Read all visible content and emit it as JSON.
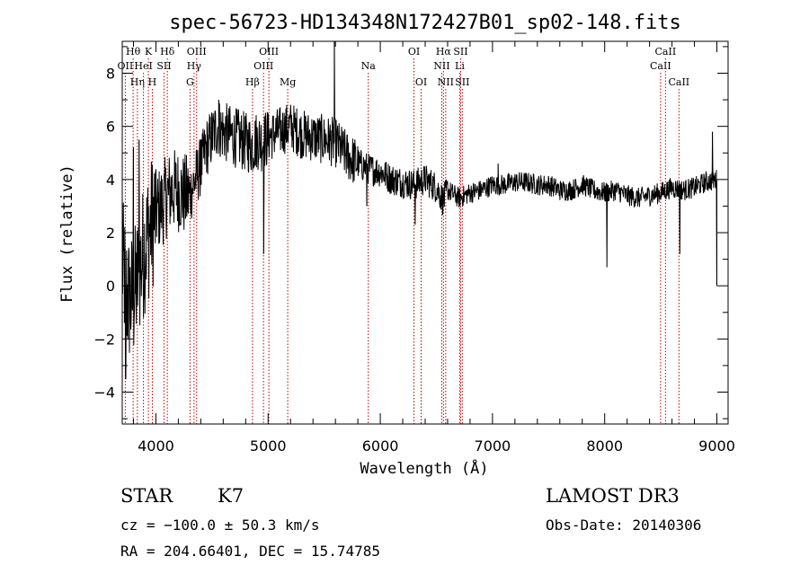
{
  "chart_data": {
    "type": "line",
    "title": "spec-56723-HD134348N172427B01_sp02-148.fits",
    "xlabel": "Wavelength (Å)",
    "ylabel": "Flux (relative)",
    "xlim": [
      3700,
      9100
    ],
    "ylim": [
      -5.2,
      9.2
    ],
    "xticks": [
      4000,
      5000,
      6000,
      7000,
      8000,
      9000
    ],
    "xtick_labels": [
      "4000",
      "5000",
      "6000",
      "7000",
      "8000",
      "9000"
    ],
    "yticks": [
      -4,
      -2,
      0,
      2,
      4,
      6,
      8
    ],
    "ytick_labels": [
      "−4",
      "−2",
      "0",
      "2",
      "4",
      "6",
      "8"
    ],
    "spectrum_anchors": {
      "x": [
        3700,
        3750,
        3800,
        3850,
        3900,
        3950,
        4000,
        4050,
        4100,
        4150,
        4200,
        4250,
        4300,
        4350,
        4400,
        4450,
        4500,
        4550,
        4600,
        4700,
        4800,
        4860,
        4900,
        4950,
        5000,
        5100,
        5200,
        5300,
        5400,
        5500,
        5600,
        5700,
        5800,
        5900,
        6000,
        6100,
        6200,
        6300,
        6400,
        6500,
        6563,
        6600,
        6700,
        6800,
        6900,
        7000,
        7100,
        7200,
        7300,
        7400,
        7500,
        7600,
        7700,
        7800,
        7900,
        8000,
        8100,
        8200,
        8300,
        8400,
        8500,
        8600,
        8700,
        8800,
        8900,
        9000
      ],
      "y": [
        0.8,
        -0.5,
        -0.5,
        0.5,
        1.5,
        2.2,
        2.8,
        3.0,
        3.4,
        3.6,
        3.6,
        3.4,
        3.4,
        4.0,
        4.5,
        5.2,
        5.6,
        6.0,
        5.8,
        5.6,
        5.4,
        5.3,
        5.5,
        5.4,
        5.6,
        5.8,
        6.0,
        5.7,
        5.6,
        5.5,
        5.4,
        4.9,
        4.6,
        4.4,
        4.3,
        4.0,
        3.9,
        3.8,
        4.0,
        3.7,
        3.2,
        3.6,
        3.3,
        3.5,
        3.6,
        3.8,
        3.8,
        3.9,
        3.9,
        3.8,
        3.8,
        3.6,
        3.6,
        3.8,
        3.6,
        3.5,
        3.6,
        3.4,
        3.3,
        3.4,
        3.5,
        3.7,
        3.6,
        3.7,
        3.9,
        4.0
      ],
      "noise_note": "dense noisy curve, amplitude decreasing with wavelength"
    },
    "spikes": [
      {
        "x": 3730,
        "y": -3.5
      },
      {
        "x": 3800,
        "y": 5.2
      },
      {
        "x": 3850,
        "y": 5.5
      },
      {
        "x": 4400,
        "y": 5.5
      },
      {
        "x": 4560,
        "y": 7.0
      },
      {
        "x": 4960,
        "y": 1.2
      },
      {
        "x": 5590,
        "y": 9.2
      },
      {
        "x": 5880,
        "y": 3.0
      },
      {
        "x": 6310,
        "y": 2.3
      },
      {
        "x": 7050,
        "y": 4.6
      },
      {
        "x": 8020,
        "y": 0.7
      },
      {
        "x": 8670,
        "y": 1.2
      },
      {
        "x": 8960,
        "y": 5.8
      },
      {
        "x": 9000,
        "y": 0.0
      }
    ],
    "line_markers": [
      {
        "x": 3797,
        "label": "Hθ",
        "row": 1
      },
      {
        "x": 3727,
        "label": "OII",
        "row": 2
      },
      {
        "x": 3835,
        "label": "Hη",
        "row": 3
      },
      {
        "x": 3889,
        "label": "HeI",
        "row": 2
      },
      {
        "x": 3933,
        "label": "K",
        "row": 1
      },
      {
        "x": 3968,
        "label": "H",
        "row": 3
      },
      {
        "x": 4072,
        "label": "SII",
        "row": 2
      },
      {
        "x": 4102,
        "label": "Hδ",
        "row": 1
      },
      {
        "x": 4304,
        "label": "G",
        "row": 3
      },
      {
        "x": 4340,
        "label": "Hγ",
        "row": 2
      },
      {
        "x": 4363,
        "label": "OIII",
        "row": 1
      },
      {
        "x": 4861,
        "label": "Hβ",
        "row": 3
      },
      {
        "x": 4959,
        "label": "OIII",
        "row": 2
      },
      {
        "x": 5007,
        "label": "OIII",
        "row": 1
      },
      {
        "x": 5175,
        "label": "Mg",
        "row": 3
      },
      {
        "x": 5893,
        "label": "Na",
        "row": 2
      },
      {
        "x": 6300,
        "label": "OI",
        "row": 1
      },
      {
        "x": 6364,
        "label": "OI",
        "row": 3
      },
      {
        "x": 6548,
        "label": "NII",
        "row": 2
      },
      {
        "x": 6563,
        "label": "Hα",
        "row": 1
      },
      {
        "x": 6583,
        "label": "NII",
        "row": 3
      },
      {
        "x": 6708,
        "label": "Li",
        "row": 2
      },
      {
        "x": 6716,
        "label": "SII",
        "row": 1
      },
      {
        "x": 6731,
        "label": "SII",
        "row": 3
      },
      {
        "x": 8498,
        "label": "CaII",
        "row": 2
      },
      {
        "x": 8542,
        "label": "CaII",
        "row": 1
      },
      {
        "x": 8662,
        "label": "CaII",
        "row": 3
      }
    ]
  },
  "info": {
    "class": "STAR",
    "subclass": "K7",
    "survey": "LAMOST DR3",
    "cz": "cz = −100.0 ± 50.3 km/s",
    "obs_date": "Obs-Date: 20140306",
    "radec": "RA = 204.66401, DEC =  15.74785"
  },
  "colors": {
    "spectrum": "#000000",
    "marker": "#c00000",
    "axes": "#000000"
  }
}
